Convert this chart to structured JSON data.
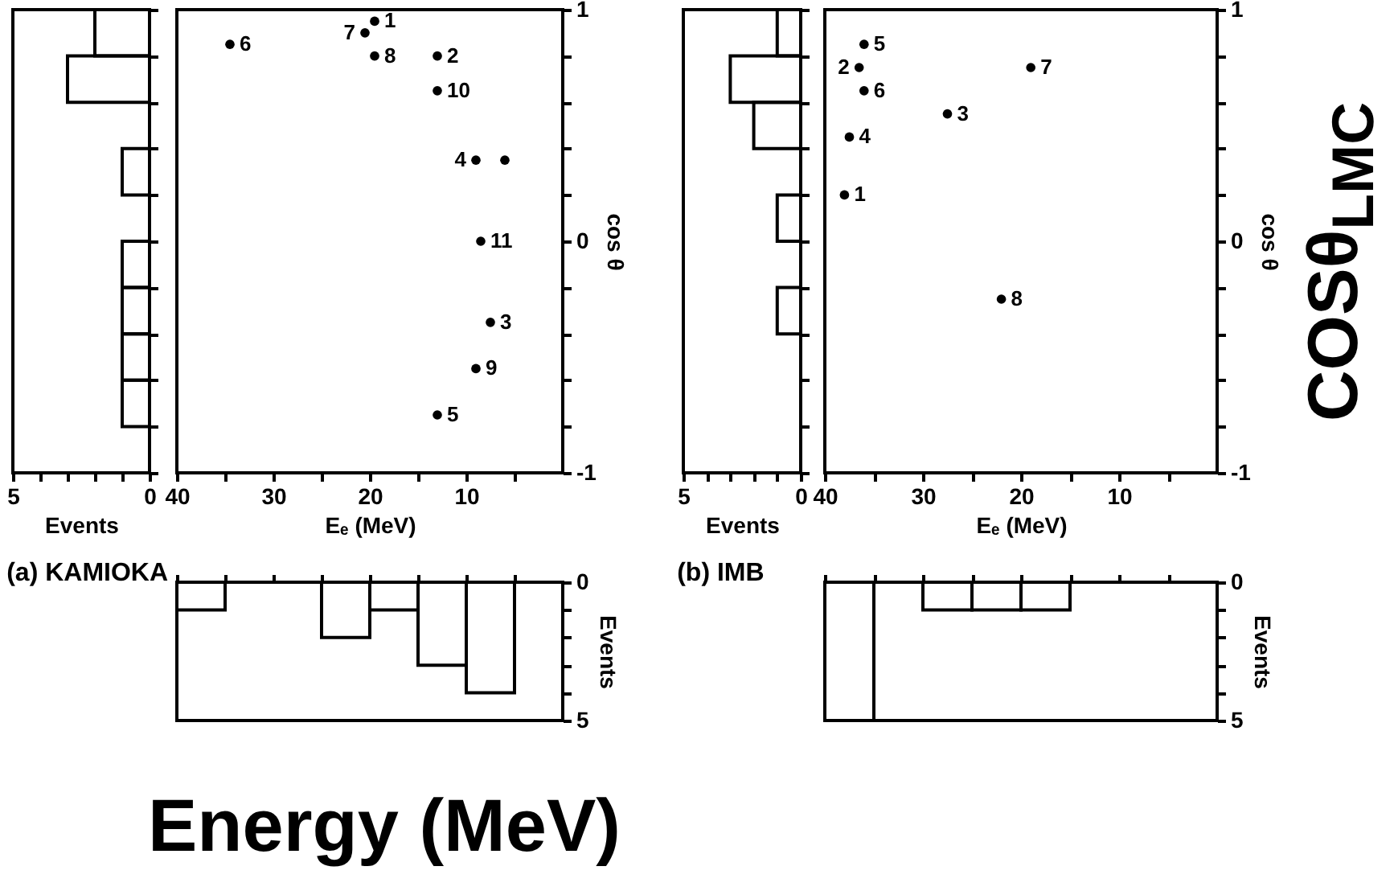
{
  "chart_data": [
    {
      "type": "histogram",
      "orientation": "horizontal",
      "title": "(a) KAMIOKA",
      "xlabel": "Events",
      "color": "#000000",
      "bins": [
        -1,
        -0.8,
        -0.6,
        -0.4,
        -0.2,
        0,
        0.2,
        0.4,
        0.6,
        0.8,
        1
      ],
      "values": [
        0,
        1,
        1,
        1,
        1,
        0,
        1,
        0,
        3,
        2
      ],
      "xlim": [
        5,
        0
      ],
      "xticks": [
        5,
        {
          "value": 4,
          "label": null
        },
        {
          "value": 3,
          "label": null
        },
        {
          "value": 2,
          "label": null
        },
        {
          "value": 1,
          "label": null
        },
        0
      ],
      "ylim": [
        -1,
        1
      ],
      "yticks": [
        -1,
        {
          "value": -0.8,
          "label": null
        },
        {
          "value": -0.6,
          "label": null
        },
        {
          "value": -0.4,
          "label": null
        },
        {
          "value": -0.2,
          "label": null
        },
        {
          "value": 0,
          "label": null
        },
        {
          "value": 0.2,
          "label": null
        },
        {
          "value": 0.4,
          "label": null
        },
        {
          "value": 0.6,
          "label": null
        },
        {
          "value": 0.8,
          "label": null
        },
        {
          "value": 1,
          "label": null
        }
      ],
      "tick_labels": "x"
    },
    {
      "type": "scatter",
      "xlabel": "Eₑ (MeV)",
      "ylabel": "cos θ",
      "marker": "circle",
      "xlim": [
        40,
        0
      ],
      "xticks": [
        40,
        {
          "value": 35,
          "label": null
        },
        30,
        {
          "value": 25,
          "label": null
        },
        20,
        {
          "value": 15,
          "label": null
        },
        10,
        {
          "value": 5,
          "label": null
        }
      ],
      "ylim": [
        -1,
        1
      ],
      "yticks": [
        -1,
        {
          "value": -0.8,
          "label": null
        },
        {
          "value": -0.6,
          "label": null
        },
        {
          "value": -0.4,
          "label": null
        },
        {
          "value": -0.2,
          "label": null
        },
        0,
        {
          "value": 0.2,
          "label": null
        },
        {
          "value": 0.4,
          "label": null
        },
        {
          "value": 0.6,
          "label": null
        },
        {
          "value": 0.8,
          "label": null
        },
        1
      ],
      "series": [
        {
          "color": "#000000",
          "x": [
            19.5,
            13,
            7.5,
            9,
            13,
            34.5,
            20.5,
            19.5,
            9,
            13,
            8.5,
            6
          ],
          "values": [
            0.95,
            0.8,
            -0.35,
            0.35,
            -0.75,
            0.85,
            0.9,
            0.8,
            -0.55,
            0.65,
            0,
            0.35
          ]
        }
      ],
      "annotations": [
        {
          "text": "1",
          "x": 19.5,
          "y": 0.95
        },
        {
          "text": "2",
          "x": 13,
          "y": 0.8
        },
        {
          "text": "3",
          "x": 7.5,
          "y": -0.35
        },
        {
          "text": "4",
          "x": 9,
          "y": 0.35
        },
        {
          "text": "5",
          "x": 13,
          "y": -0.75
        },
        {
          "text": "6",
          "x": 34.5,
          "y": 0.85
        },
        {
          "text": "7",
          "x": 20.5,
          "y": 0.9
        },
        {
          "text": "8",
          "x": 19.5,
          "y": 0.8
        },
        {
          "text": "9",
          "x": 9,
          "y": -0.55
        },
        {
          "text": "10",
          "x": 13,
          "y": 0.65
        },
        {
          "text": "11",
          "x": 8.5,
          "y": 0
        }
      ]
    },
    {
      "type": "histogram",
      "orientation": "horizontal",
      "title": "(b) IMB",
      "xlabel": "Events",
      "color": "#000000",
      "bins": [
        -1,
        -0.8,
        -0.6,
        -0.4,
        -0.2,
        0,
        0.2,
        0.4,
        0.6,
        0.8,
        1
      ],
      "values": [
        0,
        0,
        0,
        1,
        0,
        1,
        0,
        2,
        3,
        1
      ],
      "xlim": [
        5,
        0
      ],
      "xticks": [
        5,
        {
          "value": 4,
          "label": null
        },
        {
          "value": 3,
          "label": null
        },
        {
          "value": 2,
          "label": null
        },
        {
          "value": 1,
          "label": null
        },
        0
      ],
      "ylim": [
        -1,
        1
      ],
      "yticks": [
        -1,
        {
          "value": -0.8,
          "label": null
        },
        {
          "value": -0.6,
          "label": null
        },
        {
          "value": -0.4,
          "label": null
        },
        {
          "value": -0.2,
          "label": null
        },
        {
          "value": 0,
          "label": null
        },
        {
          "value": 0.2,
          "label": null
        },
        {
          "value": 0.4,
          "label": null
        },
        {
          "value": 0.6,
          "label": null
        },
        {
          "value": 0.8,
          "label": null
        },
        {
          "value": 1,
          "label": null
        }
      ],
      "tick_labels": "x"
    },
    {
      "type": "scatter",
      "xlabel": "Eₑ (MeV)",
      "ylabel": "cos θ",
      "marker": "circle",
      "xlim": [
        40,
        0
      ],
      "xticks": [
        40,
        {
          "value": 35,
          "label": null
        },
        30,
        {
          "value": 25,
          "label": null
        },
        20,
        {
          "value": 15,
          "label": null
        },
        10,
        {
          "value": 5,
          "label": null
        }
      ],
      "ylim": [
        -1,
        1
      ],
      "yticks": [
        -1,
        {
          "value": -0.8,
          "label": null
        },
        {
          "value": -0.6,
          "label": null
        },
        {
          "value": -0.4,
          "label": null
        },
        {
          "value": -0.2,
          "label": null
        },
        0,
        {
          "value": 0.2,
          "label": null
        },
        {
          "value": 0.4,
          "label": null
        },
        {
          "value": 0.6,
          "label": null
        },
        {
          "value": 0.8,
          "label": null
        },
        1
      ],
      "series": [
        {
          "color": "#000000",
          "x": [
            38,
            36.5,
            27.5,
            37.5,
            36,
            36,
            19,
            22
          ],
          "values": [
            0.2,
            0.75,
            0.55,
            0.45,
            0.85,
            0.65,
            0.75,
            -0.25
          ]
        }
      ],
      "annotations": [
        "COSθ$_{LMC}$",
        {
          "text": "1",
          "x": 38,
          "y": 0.2
        },
        {
          "text": "2",
          "x": 36.5,
          "y": 0.75
        },
        {
          "text": "3",
          "x": 27.5,
          "y": 0.55
        },
        {
          "text": "4",
          "x": 37.5,
          "y": 0.45
        },
        {
          "text": "5",
          "x": 36,
          "y": 0.85
        },
        {
          "text": "6",
          "x": 36,
          "y": 0.65
        },
        {
          "text": "7",
          "x": 19,
          "y": 0.75
        },
        {
          "text": "8",
          "x": 22,
          "y": -0.25
        }
      ]
    },
    {
      "type": "histogram",
      "ylabel": "Events",
      "color": "#000000",
      "annotations": [
        "Energy (MeV)"
      ],
      "bins": [
        0,
        5,
        10,
        15,
        20,
        25,
        30,
        35,
        40
      ],
      "values": [
        0,
        4,
        3,
        1,
        2,
        0,
        0,
        1
      ],
      "xlim": [
        40,
        0
      ],
      "xticks": [
        40,
        35,
        30,
        25,
        20,
        15,
        10,
        5
      ],
      "ylim": [
        5,
        0
      ],
      "yticks": [
        {
          "value": 0,
          "label": "0"
        },
        {
          "value": 1,
          "label": null
        },
        {
          "value": 2,
          "label": null
        },
        {
          "value": 3,
          "label": null
        },
        {
          "value": 4,
          "label": null
        },
        5
      ],
      "tick_labels": "y"
    },
    {
      "type": "histogram",
      "ylabel": "Events",
      "color": "#000000",
      "bins": [
        0,
        5,
        10,
        15,
        20,
        25,
        30,
        35,
        40
      ],
      "values": [
        0,
        0,
        0,
        1,
        1,
        1,
        0,
        5
      ],
      "xlim": [
        40,
        0
      ],
      "xticks": [
        40,
        35,
        30,
        25,
        20,
        15,
        10,
        5
      ],
      "ylim": [
        5,
        0
      ],
      "yticks": [
        {
          "value": 0,
          "label": "0"
        },
        {
          "value": 1,
          "label": null
        },
        {
          "value": 2,
          "label": null
        },
        {
          "value": 3,
          "label": null
        },
        {
          "value": 4,
          "label": null
        },
        5
      ],
      "tick_labels": "y"
    }
  ]
}
